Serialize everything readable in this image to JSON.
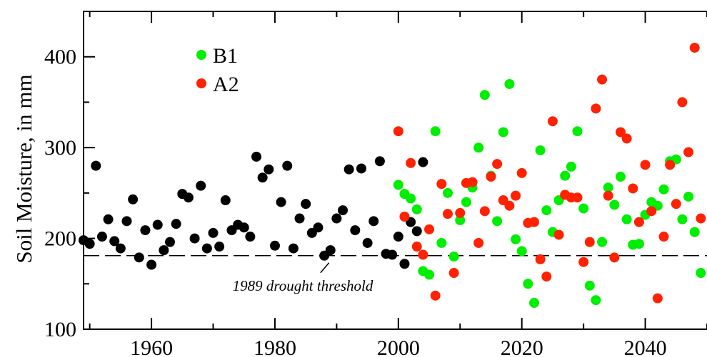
{
  "chart_data": {
    "type": "scatter",
    "title": "",
    "xlabel": "",
    "ylabel": "Soil Moisture, in mm",
    "xlim": [
      1949,
      2050
    ],
    "ylim": [
      100,
      450
    ],
    "xticks": [
      1960,
      1980,
      2000,
      2020,
      2040
    ],
    "yticks": [
      100,
      200,
      300,
      400
    ],
    "grid": false,
    "legend_position": "top-left",
    "threshold": {
      "value": 181,
      "label": "1989 drought threshold",
      "style": "dashed"
    },
    "series": [
      {
        "color": "#000000",
        "points": [
          [
            1949,
            198
          ],
          [
            1950,
            194
          ],
          [
            1951,
            280
          ],
          [
            1952,
            202
          ],
          [
            1953,
            221
          ],
          [
            1954,
            197
          ],
          [
            1955,
            189
          ],
          [
            1956,
            219
          ],
          [
            1957,
            243
          ],
          [
            1958,
            179
          ],
          [
            1959,
            209
          ],
          [
            1960,
            171
          ],
          [
            1961,
            215
          ],
          [
            1962,
            187
          ],
          [
            1963,
            196
          ],
          [
            1964,
            216
          ],
          [
            1965,
            249
          ],
          [
            1966,
            245
          ],
          [
            1967,
            200
          ],
          [
            1968,
            258
          ],
          [
            1969,
            189
          ],
          [
            1970,
            206
          ],
          [
            1971,
            191
          ],
          [
            1972,
            242
          ],
          [
            1973,
            209
          ],
          [
            1974,
            215
          ],
          [
            1975,
            212
          ],
          [
            1976,
            202
          ],
          [
            1977,
            290
          ],
          [
            1978,
            267
          ],
          [
            1979,
            276
          ],
          [
            1980,
            192
          ],
          [
            1981,
            240
          ],
          [
            1982,
            280
          ],
          [
            1983,
            189
          ],
          [
            1984,
            222
          ],
          [
            1985,
            238
          ],
          [
            1986,
            206
          ],
          [
            1987,
            212
          ],
          [
            1988,
            181
          ],
          [
            1989,
            187
          ],
          [
            1990,
            222
          ],
          [
            1991,
            231
          ],
          [
            1992,
            276
          ],
          [
            1993,
            209
          ],
          [
            1994,
            277
          ],
          [
            1995,
            195
          ],
          [
            1996,
            219
          ],
          [
            1997,
            285
          ],
          [
            1998,
            183
          ],
          [
            1999,
            182
          ],
          [
            2000,
            202
          ],
          [
            2001,
            172
          ],
          [
            2002,
            218
          ],
          [
            2003,
            208
          ],
          [
            2004,
            284
          ]
        ]
      },
      {
        "name": "B1",
        "color": "#00ee00",
        "points": [
          [
            2000,
            259
          ],
          [
            2001,
            249
          ],
          [
            2002,
            244
          ],
          [
            2003,
            232
          ],
          [
            2004,
            164
          ],
          [
            2005,
            160
          ],
          [
            2006,
            318
          ],
          [
            2007,
            195
          ],
          [
            2008,
            250
          ],
          [
            2009,
            180
          ],
          [
            2010,
            220
          ],
          [
            2011,
            240
          ],
          [
            2012,
            256
          ],
          [
            2013,
            300
          ],
          [
            2014,
            358
          ],
          [
            2015,
            269
          ],
          [
            2016,
            219
          ],
          [
            2017,
            317
          ],
          [
            2018,
            370
          ],
          [
            2019,
            199
          ],
          [
            2020,
            186
          ],
          [
            2021,
            150
          ],
          [
            2022,
            129
          ],
          [
            2023,
            297
          ],
          [
            2024,
            231
          ],
          [
            2025,
            207
          ],
          [
            2026,
            242
          ],
          [
            2027,
            269
          ],
          [
            2028,
            279
          ],
          [
            2029,
            318
          ],
          [
            2030,
            233
          ],
          [
            2031,
            148
          ],
          [
            2032,
            132
          ],
          [
            2033,
            196
          ],
          [
            2034,
            256
          ],
          [
            2035,
            237
          ],
          [
            2036,
            268
          ],
          [
            2037,
            221
          ],
          [
            2038,
            193
          ],
          [
            2039,
            194
          ],
          [
            2040,
            226
          ],
          [
            2041,
            240
          ],
          [
            2042,
            236
          ],
          [
            2043,
            254
          ],
          [
            2044,
            285
          ],
          [
            2045,
            287
          ],
          [
            2046,
            221
          ],
          [
            2047,
            246
          ],
          [
            2048,
            207
          ],
          [
            2049,
            162
          ]
        ]
      },
      {
        "name": "A2",
        "color": "#ff2200",
        "points": [
          [
            2000,
            318
          ],
          [
            2001,
            224
          ],
          [
            2002,
            283
          ],
          [
            2003,
            191
          ],
          [
            2004,
            182
          ],
          [
            2005,
            210
          ],
          [
            2006,
            137
          ],
          [
            2007,
            260
          ],
          [
            2008,
            227
          ],
          [
            2009,
            162
          ],
          [
            2010,
            228
          ],
          [
            2011,
            261
          ],
          [
            2012,
            262
          ],
          [
            2013,
            195
          ],
          [
            2014,
            230
          ],
          [
            2015,
            268
          ],
          [
            2016,
            282
          ],
          [
            2017,
            242
          ],
          [
            2018,
            236
          ],
          [
            2019,
            247
          ],
          [
            2020,
            272
          ],
          [
            2021,
            217
          ],
          [
            2022,
            218
          ],
          [
            2023,
            177
          ],
          [
            2024,
            158
          ],
          [
            2025,
            329
          ],
          [
            2026,
            204
          ],
          [
            2027,
            248
          ],
          [
            2028,
            245
          ],
          [
            2029,
            245
          ],
          [
            2030,
            174
          ],
          [
            2031,
            196
          ],
          [
            2032,
            343
          ],
          [
            2033,
            375
          ],
          [
            2034,
            247
          ],
          [
            2035,
            179
          ],
          [
            2036,
            317
          ],
          [
            2037,
            310
          ],
          [
            2038,
            255
          ],
          [
            2039,
            218
          ],
          [
            2040,
            281
          ],
          [
            2041,
            230
          ],
          [
            2042,
            134
          ],
          [
            2043,
            202
          ],
          [
            2044,
            281
          ],
          [
            2045,
            238
          ],
          [
            2046,
            350
          ],
          [
            2047,
            295
          ],
          [
            2048,
            410
          ],
          [
            2049,
            222
          ]
        ]
      }
    ]
  }
}
